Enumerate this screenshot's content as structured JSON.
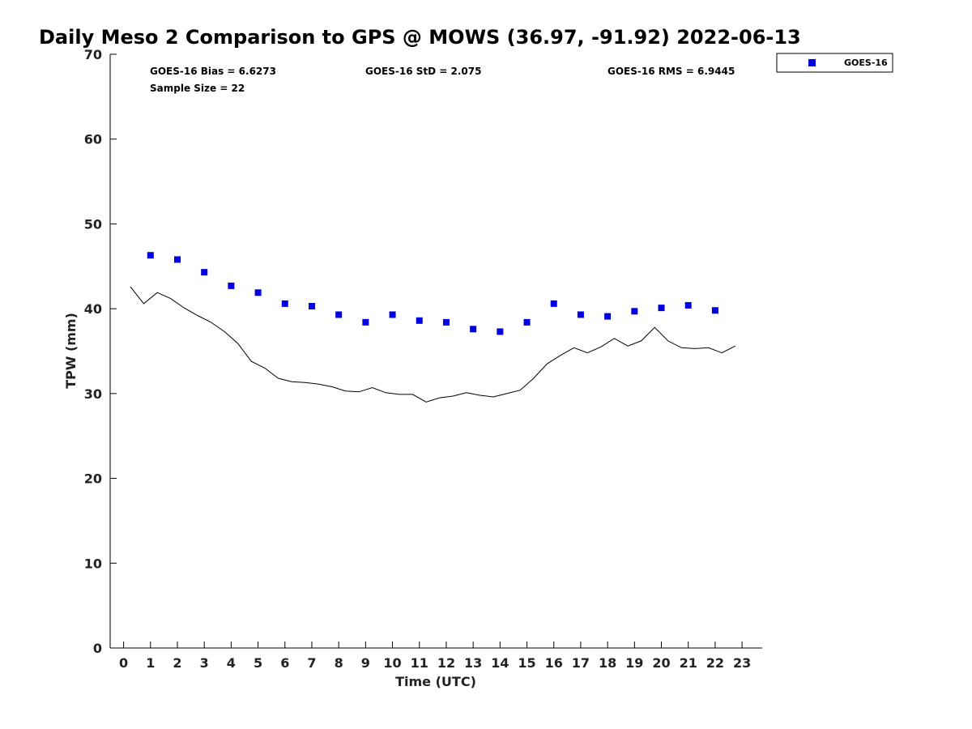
{
  "chart_data": {
    "type": "scatter",
    "title": "Daily Meso 2 Comparison to GPS @ MOWS (36.97, -91.92) 2022-06-13",
    "xlabel": "Time (UTC)",
    "ylabel": "TPW (mm)",
    "xlim": [
      -0.5,
      23.75
    ],
    "ylim": [
      0,
      70
    ],
    "xticks": [
      0,
      1,
      2,
      3,
      4,
      5,
      6,
      7,
      8,
      9,
      10,
      11,
      12,
      13,
      14,
      15,
      16,
      17,
      18,
      19,
      20,
      21,
      22,
      23
    ],
    "yticks": [
      0,
      10,
      20,
      30,
      40,
      50,
      60,
      70
    ],
    "grid": false,
    "legend_position": "top-right-outside",
    "stats": {
      "bias": "GOES-16 Bias = 6.6273",
      "std": "GOES-16 StD = 2.075",
      "rms": "GOES-16 RMS = 6.9445",
      "sample": "Sample Size = 22"
    },
    "series": [
      {
        "name": "GOES-16",
        "kind": "markers",
        "color": "#0000e0",
        "marker": "square",
        "x": [
          1,
          2,
          3,
          4,
          5,
          6,
          7,
          8,
          9,
          10,
          11,
          12,
          13,
          14,
          15,
          16,
          17,
          18,
          19,
          20,
          21,
          22
        ],
        "y": [
          46.3,
          45.8,
          44.3,
          42.7,
          41.9,
          40.6,
          40.3,
          39.3,
          38.4,
          39.3,
          38.6,
          38.4,
          37.6,
          37.3,
          38.4,
          40.6,
          39.3,
          39.1,
          39.7,
          40.1,
          40.4,
          39.8
        ]
      },
      {
        "kind": "line",
        "color": "#000000",
        "x": [
          0.25,
          0.75,
          1.25,
          1.75,
          2.25,
          2.75,
          3.25,
          3.75,
          4.25,
          4.75,
          5.25,
          5.75,
          6.25,
          6.75,
          7.25,
          7.75,
          8.25,
          8.75,
          9.25,
          9.75,
          10.25,
          10.75,
          11.25,
          11.75,
          12.25,
          12.75,
          13.25,
          13.75,
          14.25,
          14.75,
          15.25,
          15.75,
          16.25,
          16.75,
          17.25,
          17.75,
          18.25,
          18.75,
          19.25,
          19.75,
          20.25,
          20.75,
          21.25,
          21.75,
          22.25,
          22.75
        ],
        "y": [
          42.6,
          40.6,
          41.9,
          41.2,
          40.1,
          39.2,
          38.4,
          37.3,
          35.9,
          33.8,
          33.0,
          31.8,
          31.4,
          31.3,
          31.1,
          30.8,
          30.3,
          30.2,
          30.7,
          30.1,
          29.9,
          29.9,
          29.0,
          29.5,
          29.7,
          30.1,
          29.8,
          29.6,
          30.0,
          30.4,
          31.8,
          33.5,
          34.5,
          35.4,
          34.8,
          35.5,
          36.5,
          35.6,
          36.2,
          37.8,
          36.2,
          35.4,
          35.3,
          35.4,
          34.8,
          35.6
        ]
      }
    ]
  }
}
